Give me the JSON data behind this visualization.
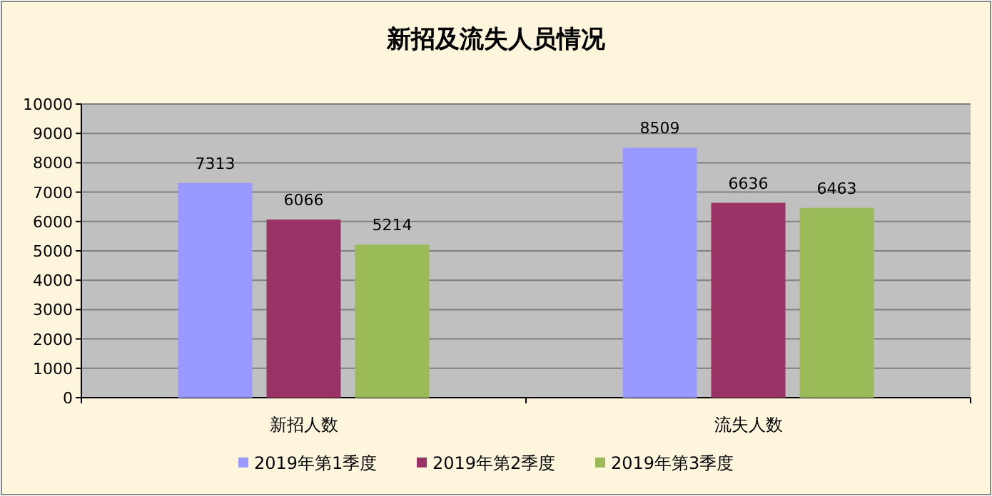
{
  "chart_data": {
    "type": "bar",
    "title": "新招及流失人员情况",
    "categories": [
      "新招人数",
      "流失人数"
    ],
    "series": [
      {
        "name": "2019年第1季度",
        "color": "#9999ff",
        "values": [
          7313,
          8509
        ]
      },
      {
        "name": "2019年第2季度",
        "color": "#993366",
        "values": [
          6066,
          6636
        ]
      },
      {
        "name": "2019年第3季度",
        "color": "#9bbb59",
        "values": [
          5214,
          6463
        ]
      }
    ],
    "ylim": [
      0,
      10000
    ],
    "yticks": [
      0,
      1000,
      2000,
      3000,
      4000,
      5000,
      6000,
      7000,
      8000,
      9000,
      10000
    ],
    "grid": "y",
    "legend": "bottom",
    "data_labels": true
  }
}
